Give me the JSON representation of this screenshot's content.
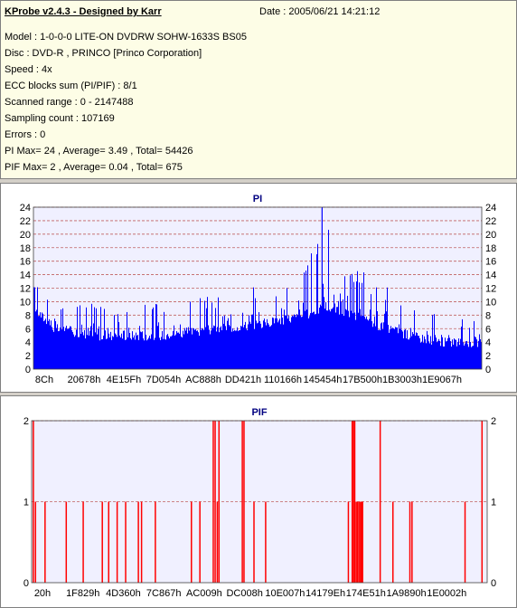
{
  "header": {
    "app_title": "KProbe v2.4.3 - Designed by Karr",
    "date": "Date : 2005/06/21 14:21:12",
    "lines": [
      "Model : 1-0-0-0 LITE-ON DVDRW SOHW-1633S BS05",
      "Disc : DVD-R , PRINCO [Princo Corporation]",
      "Speed : 4x",
      "ECC blocks sum (PI/PIF) : 8/1",
      "Scanned range : 0 - 2147488",
      "Sampling count : 107169",
      "Errors : 0",
      "PI Max= 24 , Average= 3.49 , Total= 54426",
      "PIF Max= 2 , Average= 0.04 , Total= 675"
    ]
  },
  "colors": {
    "pi_bars": "#0000ff",
    "pif_bars": "#ff0000",
    "plot_bg": "#f0f0ff",
    "grid": "#c06060"
  },
  "chart_data": [
    {
      "type": "bar",
      "title": "PI",
      "x_tick_labels": [
        "8Ch",
        "20678h",
        "4E15Fh",
        "7D054h",
        "AC888h",
        "DD421h",
        "110166h",
        "145454h",
        "17B500h",
        "1B3003h",
        "1E9067h"
      ],
      "x_range": [
        0,
        2147488
      ],
      "ylim": [
        0,
        24
      ],
      "y_ticks": [
        0,
        2,
        4,
        6,
        8,
        10,
        12,
        14,
        16,
        18,
        20,
        22,
        24
      ],
      "grid": true,
      "max": 24,
      "average": 3.49,
      "envelope": [
        {
          "x": 0,
          "base": 9,
          "peak": 14
        },
        {
          "x": 100000,
          "base": 6,
          "peak": 10
        },
        {
          "x": 300000,
          "base": 5,
          "peak": 10
        },
        {
          "x": 600000,
          "base": 5,
          "peak": 10
        },
        {
          "x": 900000,
          "base": 6,
          "peak": 11
        },
        {
          "x": 1150000,
          "base": 7,
          "peak": 13
        },
        {
          "x": 1300000,
          "base": 8,
          "peak": 15
        },
        {
          "x": 1380000,
          "base": 9,
          "peak": 24
        },
        {
          "x": 1450000,
          "base": 9,
          "peak": 17
        },
        {
          "x": 1600000,
          "base": 7,
          "peak": 14
        },
        {
          "x": 1800000,
          "base": 5,
          "peak": 11
        },
        {
          "x": 1950000,
          "base": 4,
          "peak": 8
        },
        {
          "x": 2147488,
          "base": 4,
          "peak": 7
        }
      ]
    },
    {
      "type": "bar",
      "title": "PIF",
      "x_tick_labels": [
        "20h",
        "1F829h",
        "4D360h",
        "7C867h",
        "AC009h",
        "DC008h",
        "10E007h",
        "14179Eh",
        "174E51h",
        "1A9890h",
        "1E0002h"
      ],
      "x_range": [
        0,
        2147488
      ],
      "ylim": [
        0,
        2
      ],
      "y_ticks": [
        0,
        1,
        2
      ],
      "grid": true,
      "max": 2,
      "average": 0.04,
      "points": [
        [
          5000,
          2
        ],
        [
          15000,
          1
        ],
        [
          60000,
          1
        ],
        [
          160000,
          1
        ],
        [
          240000,
          1
        ],
        [
          330000,
          1
        ],
        [
          360000,
          1
        ],
        [
          400000,
          1
        ],
        [
          440000,
          1
        ],
        [
          500000,
          1
        ],
        [
          515000,
          1
        ],
        [
          580000,
          1
        ],
        [
          750000,
          1
        ],
        [
          790000,
          1
        ],
        [
          853000,
          2
        ],
        [
          862000,
          2
        ],
        [
          872000,
          1
        ],
        [
          880000,
          2
        ],
        [
          990000,
          2
        ],
        [
          998000,
          2
        ],
        [
          1045000,
          1
        ],
        [
          1100000,
          1
        ],
        [
          1490000,
          1
        ],
        [
          1508000,
          2
        ],
        [
          1514000,
          2
        ],
        [
          1520000,
          2
        ],
        [
          1527000,
          1
        ],
        [
          1533000,
          1
        ],
        [
          1540000,
          1
        ],
        [
          1547000,
          1
        ],
        [
          1553000,
          1
        ],
        [
          1557000,
          1
        ],
        [
          1640000,
          2
        ],
        [
          1700000,
          1
        ],
        [
          1780000,
          1
        ],
        [
          1790000,
          1
        ],
        [
          2040000,
          1
        ],
        [
          2120000,
          2
        ]
      ]
    }
  ]
}
